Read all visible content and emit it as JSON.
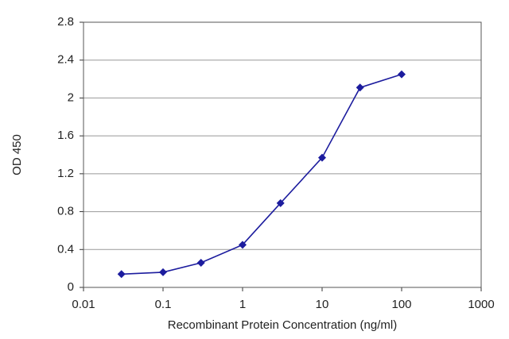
{
  "chart_data": {
    "type": "line",
    "x_label": "Recombinant Protein Concentration (ng/ml)",
    "y_label": "OD 450",
    "x": [
      0.03,
      0.1,
      0.3,
      1,
      3,
      10,
      30,
      100
    ],
    "series": [
      {
        "color": "#1c1c9e",
        "values": [
          0.14,
          0.16,
          0.26,
          0.45,
          0.89,
          1.37,
          2.11,
          2.25
        ]
      }
    ],
    "xscale": "log",
    "xlim": [
      0.01,
      1000
    ],
    "xticks": [
      0.01,
      0.1,
      1,
      10,
      100,
      1000
    ],
    "ylim": [
      0,
      2.8
    ],
    "yticks": [
      0,
      0.4,
      0.8,
      1.2,
      1.6,
      2,
      2.4,
      2.8
    ],
    "grid": true
  }
}
